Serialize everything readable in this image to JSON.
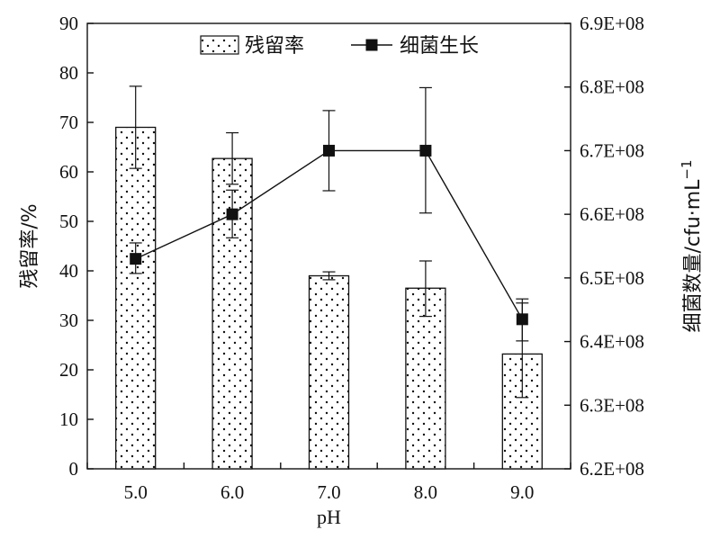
{
  "chart_data": {
    "type": "bar",
    "categories": [
      "5.0",
      "6.0",
      "7.0",
      "8.0",
      "9.0"
    ],
    "xlabel": "pH",
    "ylabel": "残留率/%",
    "y2label": "细菌数量/cfu·mL⁻¹",
    "y2label_base": "细菌数量/cfu·mL",
    "y2label_sup": "−1",
    "ylim": [
      0,
      90
    ],
    "yticks": [
      "0",
      "10",
      "20",
      "30",
      "40",
      "50",
      "60",
      "70",
      "80",
      "90"
    ],
    "y2lim": [
      620000000,
      690000000
    ],
    "y2ticks": [
      "6.2E+08",
      "6.3E+08",
      "6.4E+08",
      "6.5E+08",
      "6.6E+08",
      "6.7E+08",
      "6.8E+08",
      "6.9E+08"
    ],
    "legend_position": "top-center",
    "series": [
      {
        "name": "残留率",
        "type": "bar",
        "axis": "left",
        "fill": "dotted",
        "values": [
          69,
          62.7,
          39,
          36.5,
          23.2
        ],
        "err_high": [
          77.3,
          67.9,
          39.8,
          42.0,
          33.5
        ],
        "err_low": [
          60.7,
          57.5,
          38.2,
          30.8,
          14.4
        ]
      },
      {
        "name": "细菌生长",
        "type": "line",
        "axis": "right",
        "marker": "square",
        "values": [
          653000000,
          660000000,
          670000000,
          670000000,
          643500000
        ],
        "err_high": [
          655500000,
          663800000,
          676300000,
          679900000,
          646700000
        ],
        "err_low": [
          650700000,
          656300000,
          663700000,
          660200000,
          640100000
        ]
      }
    ]
  }
}
